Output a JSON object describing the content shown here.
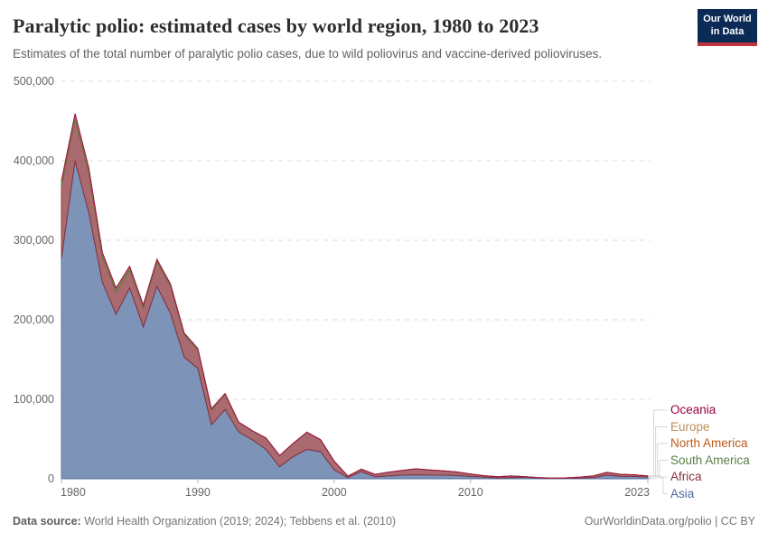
{
  "header": {
    "title": "Paralytic polio: estimated cases by world region, 1980 to 2023",
    "subtitle": "Estimates of the total number of paralytic polio cases, due to wild poliovirus and vaccine-derived polioviruses.",
    "logo_line1": "Our World",
    "logo_line2": "in Data"
  },
  "footer": {
    "source_label": "Data source:",
    "source_text": " World Health Organization (2019; 2024); Tebbens et al. (2010)",
    "link": "OurWorldinData.org/polio",
    "separator": " | ",
    "license": "CC BY"
  },
  "colors": {
    "logo_bg": "#0b2b56",
    "logo_stripe": "#bf3341",
    "grid": "#dcdcdc",
    "axis": "#b3b3b3",
    "connector": "#d8d8d8",
    "tick_text": "#666666"
  },
  "chart_data": {
    "type": "area",
    "stacked": true,
    "title": "Paralytic polio: estimated cases by world region, 1980 to 2023",
    "xlabel": "",
    "ylabel": "",
    "xlim": [
      1980,
      2023
    ],
    "ylim": [
      0,
      500000
    ],
    "grid": "dashed horizontal",
    "legend_position": "right",
    "x": [
      1980,
      1981,
      1982,
      1983,
      1984,
      1985,
      1986,
      1987,
      1988,
      1989,
      1990,
      1991,
      1992,
      1993,
      1994,
      1995,
      1996,
      1997,
      1998,
      1999,
      2000,
      2001,
      2002,
      2003,
      2004,
      2005,
      2006,
      2007,
      2008,
      2009,
      2010,
      2011,
      2012,
      2013,
      2014,
      2015,
      2016,
      2017,
      2018,
      2019,
      2020,
      2021,
      2022,
      2023
    ],
    "series": [
      {
        "name": "Asia",
        "color": "#4C6A9C",
        "values": [
          277000,
          400000,
          335000,
          247000,
          207000,
          240000,
          191000,
          242000,
          208000,
          153000,
          139000,
          68000,
          87000,
          59000,
          49000,
          37000,
          15000,
          28000,
          37000,
          34000,
          11000,
          1500,
          9000,
          2500,
          3500,
          4500,
          5000,
          4500,
          4500,
          4000,
          3000,
          2000,
          1000,
          1500,
          1800,
          1000,
          500,
          600,
          800,
          1500,
          4500,
          3000,
          2800,
          2300
        ]
      },
      {
        "name": "Africa",
        "color": "#883039",
        "values": [
          90000,
          52000,
          50000,
          32000,
          28000,
          23000,
          24000,
          31000,
          34000,
          28000,
          23000,
          18500,
          19000,
          11500,
          11000,
          14000,
          14000,
          16500,
          21500,
          15000,
          11000,
          1800,
          3000,
          3000,
          4800,
          6000,
          7500,
          6500,
          5500,
          4500,
          3000,
          1800,
          1500,
          2000,
          800,
          500,
          400,
          500,
          1200,
          2000,
          3500,
          2500,
          2200,
          1200
        ]
      },
      {
        "name": "South America",
        "color": "#578145",
        "values": [
          5000,
          5000,
          4500,
          4000,
          3500,
          3000,
          2500,
          2200,
          2000,
          1800,
          1500,
          1200,
          800,
          500,
          300,
          150,
          80,
          50,
          30,
          30,
          20,
          10,
          10,
          10,
          10,
          10,
          10,
          10,
          10,
          10,
          10,
          10,
          10,
          10,
          10,
          10,
          10,
          10,
          10,
          10,
          10,
          10,
          10,
          10
        ]
      },
      {
        "name": "North America",
        "color": "#C05917",
        "values": [
          1500,
          1200,
          1000,
          800,
          700,
          600,
          500,
          500,
          400,
          300,
          250,
          200,
          150,
          100,
          80,
          50,
          30,
          20,
          10,
          10,
          10,
          5,
          5,
          5,
          5,
          5,
          5,
          5,
          5,
          5,
          5,
          5,
          5,
          5,
          5,
          5,
          5,
          5,
          5,
          5,
          5,
          5,
          5,
          5
        ]
      },
      {
        "name": "Europe",
        "color": "#BC8E5A",
        "values": [
          1200,
          1000,
          900,
          800,
          700,
          600,
          500,
          400,
          400,
          300,
          250,
          200,
          150,
          100,
          80,
          60,
          40,
          30,
          20,
          20,
          10,
          5,
          5,
          5,
          5,
          5,
          5,
          5,
          5,
          5,
          5,
          5,
          5,
          5,
          5,
          5,
          5,
          5,
          5,
          5,
          5,
          5,
          5,
          5
        ]
      },
      {
        "name": "Oceania",
        "color": "#970046",
        "values": [
          100,
          100,
          80,
          70,
          60,
          60,
          50,
          50,
          40,
          30,
          30,
          20,
          20,
          10,
          10,
          10,
          5,
          5,
          5,
          5,
          5,
          2,
          2,
          2,
          2,
          2,
          2,
          2,
          2,
          2,
          2,
          2,
          2,
          2,
          2,
          2,
          2,
          2,
          2,
          2,
          2,
          2,
          2,
          2
        ]
      }
    ],
    "legend": [
      {
        "label": "Oceania",
        "color": "#970046"
      },
      {
        "label": "Europe",
        "color": "#BC8E5A"
      },
      {
        "label": "North America",
        "color": "#C05917"
      },
      {
        "label": "South America",
        "color": "#578145"
      },
      {
        "label": "Africa",
        "color": "#883039"
      },
      {
        "label": "Asia",
        "color": "#4C6A9C"
      }
    ],
    "yticks": [
      {
        "value": 0,
        "label": "0"
      },
      {
        "value": 100000,
        "label": "100,000"
      },
      {
        "value": 200000,
        "label": "200,000"
      },
      {
        "value": 300000,
        "label": "300,000"
      },
      {
        "value": 400000,
        "label": "400,000"
      },
      {
        "value": 500000,
        "label": "500,000"
      }
    ],
    "xticks": [
      {
        "value": 1980,
        "label": "1980"
      },
      {
        "value": 1990,
        "label": "1990"
      },
      {
        "value": 2000,
        "label": "2000"
      },
      {
        "value": 2010,
        "label": "2010"
      },
      {
        "value": 2023,
        "label": "2023"
      }
    ]
  }
}
